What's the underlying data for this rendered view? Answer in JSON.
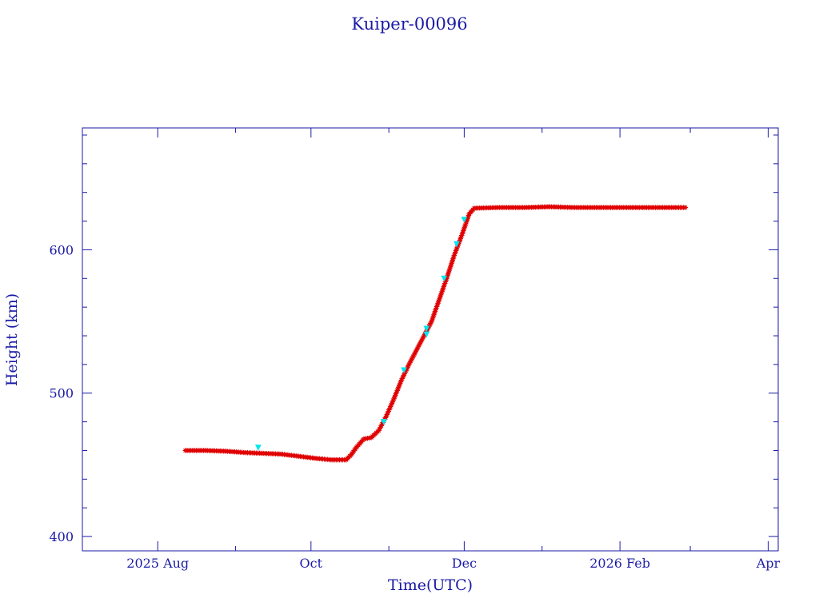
{
  "chart_data": {
    "type": "scatter",
    "title": "Kuiper-00096",
    "xlabel": "Time(UTC)",
    "ylabel": "Height (km)",
    "xlim": [
      "2025-07-02",
      "2026-04-05"
    ],
    "ylim": [
      390,
      685
    ],
    "x_ticks": [
      {
        "date": "2025-08-01",
        "label": "2025 Aug"
      },
      {
        "date": "2025-10-01",
        "label": "Oct"
      },
      {
        "date": "2025-12-01",
        "label": "Dec"
      },
      {
        "date": "2026-02-01",
        "label": "2026 Feb"
      },
      {
        "date": "2026-04-01",
        "label": "Apr"
      }
    ],
    "y_ticks": [
      {
        "value": 400,
        "label": "400"
      },
      {
        "value": 500,
        "label": "500"
      },
      {
        "value": 600,
        "label": "600"
      }
    ],
    "grid": false,
    "legend": false,
    "colors": {
      "axis": "#1a1aa6",
      "series_main": "#e00000",
      "series_secondary": "#00e5ee"
    },
    "series": [
      {
        "marker": "star",
        "color": "#e00000",
        "points": [
          {
            "x": "2025-08-12",
            "y": 460
          },
          {
            "x": "2025-08-20",
            "y": 460
          },
          {
            "x": "2025-08-28",
            "y": 459.5
          },
          {
            "x": "2025-09-05",
            "y": 458.5
          },
          {
            "x": "2025-09-12",
            "y": 458
          },
          {
            "x": "2025-09-19",
            "y": 457.5
          },
          {
            "x": "2025-09-26",
            "y": 456
          },
          {
            "x": "2025-10-03",
            "y": 454.5
          },
          {
            "x": "2025-10-09",
            "y": 453.5
          },
          {
            "x": "2025-10-15",
            "y": 453.5
          },
          {
            "x": "2025-10-17",
            "y": 457
          },
          {
            "x": "2025-10-19",
            "y": 462
          },
          {
            "x": "2025-10-22",
            "y": 468
          },
          {
            "x": "2025-10-25",
            "y": 469
          },
          {
            "x": "2025-10-28",
            "y": 474
          },
          {
            "x": "2025-10-31",
            "y": 484
          },
          {
            "x": "2025-11-03",
            "y": 496
          },
          {
            "x": "2025-11-06",
            "y": 509
          },
          {
            "x": "2025-11-09",
            "y": 520
          },
          {
            "x": "2025-11-12",
            "y": 530
          },
          {
            "x": "2025-11-15",
            "y": 540
          },
          {
            "x": "2025-11-18",
            "y": 550
          },
          {
            "x": "2025-11-21",
            "y": 565
          },
          {
            "x": "2025-11-24",
            "y": 580
          },
          {
            "x": "2025-11-27",
            "y": 596
          },
          {
            "x": "2025-11-30",
            "y": 610
          },
          {
            "x": "2025-12-03",
            "y": 625
          },
          {
            "x": "2025-12-05",
            "y": 629
          },
          {
            "x": "2025-12-15",
            "y": 629.5
          },
          {
            "x": "2025-12-25",
            "y": 629.5
          },
          {
            "x": "2026-01-04",
            "y": 630
          },
          {
            "x": "2026-01-14",
            "y": 629.5
          },
          {
            "x": "2026-01-24",
            "y": 629.5
          },
          {
            "x": "2026-02-03",
            "y": 629.5
          },
          {
            "x": "2026-02-13",
            "y": 629.5
          },
          {
            "x": "2026-02-23",
            "y": 629.5
          },
          {
            "x": "2026-02-27",
            "y": 629.5
          }
        ]
      },
      {
        "marker": "triangle",
        "color": "#00e5ee",
        "points": [
          {
            "x": "2025-09-10",
            "y": 462
          },
          {
            "x": "2025-11-16",
            "y": 545
          },
          {
            "x": "2025-11-16",
            "y": 541
          },
          {
            "x": "2025-11-23",
            "y": 580
          },
          {
            "x": "2025-11-28",
            "y": 604
          },
          {
            "x": "2025-12-01",
            "y": 621
          },
          {
            "x": "2025-10-30",
            "y": 480
          },
          {
            "x": "2025-11-07",
            "y": 516
          }
        ]
      }
    ]
  }
}
